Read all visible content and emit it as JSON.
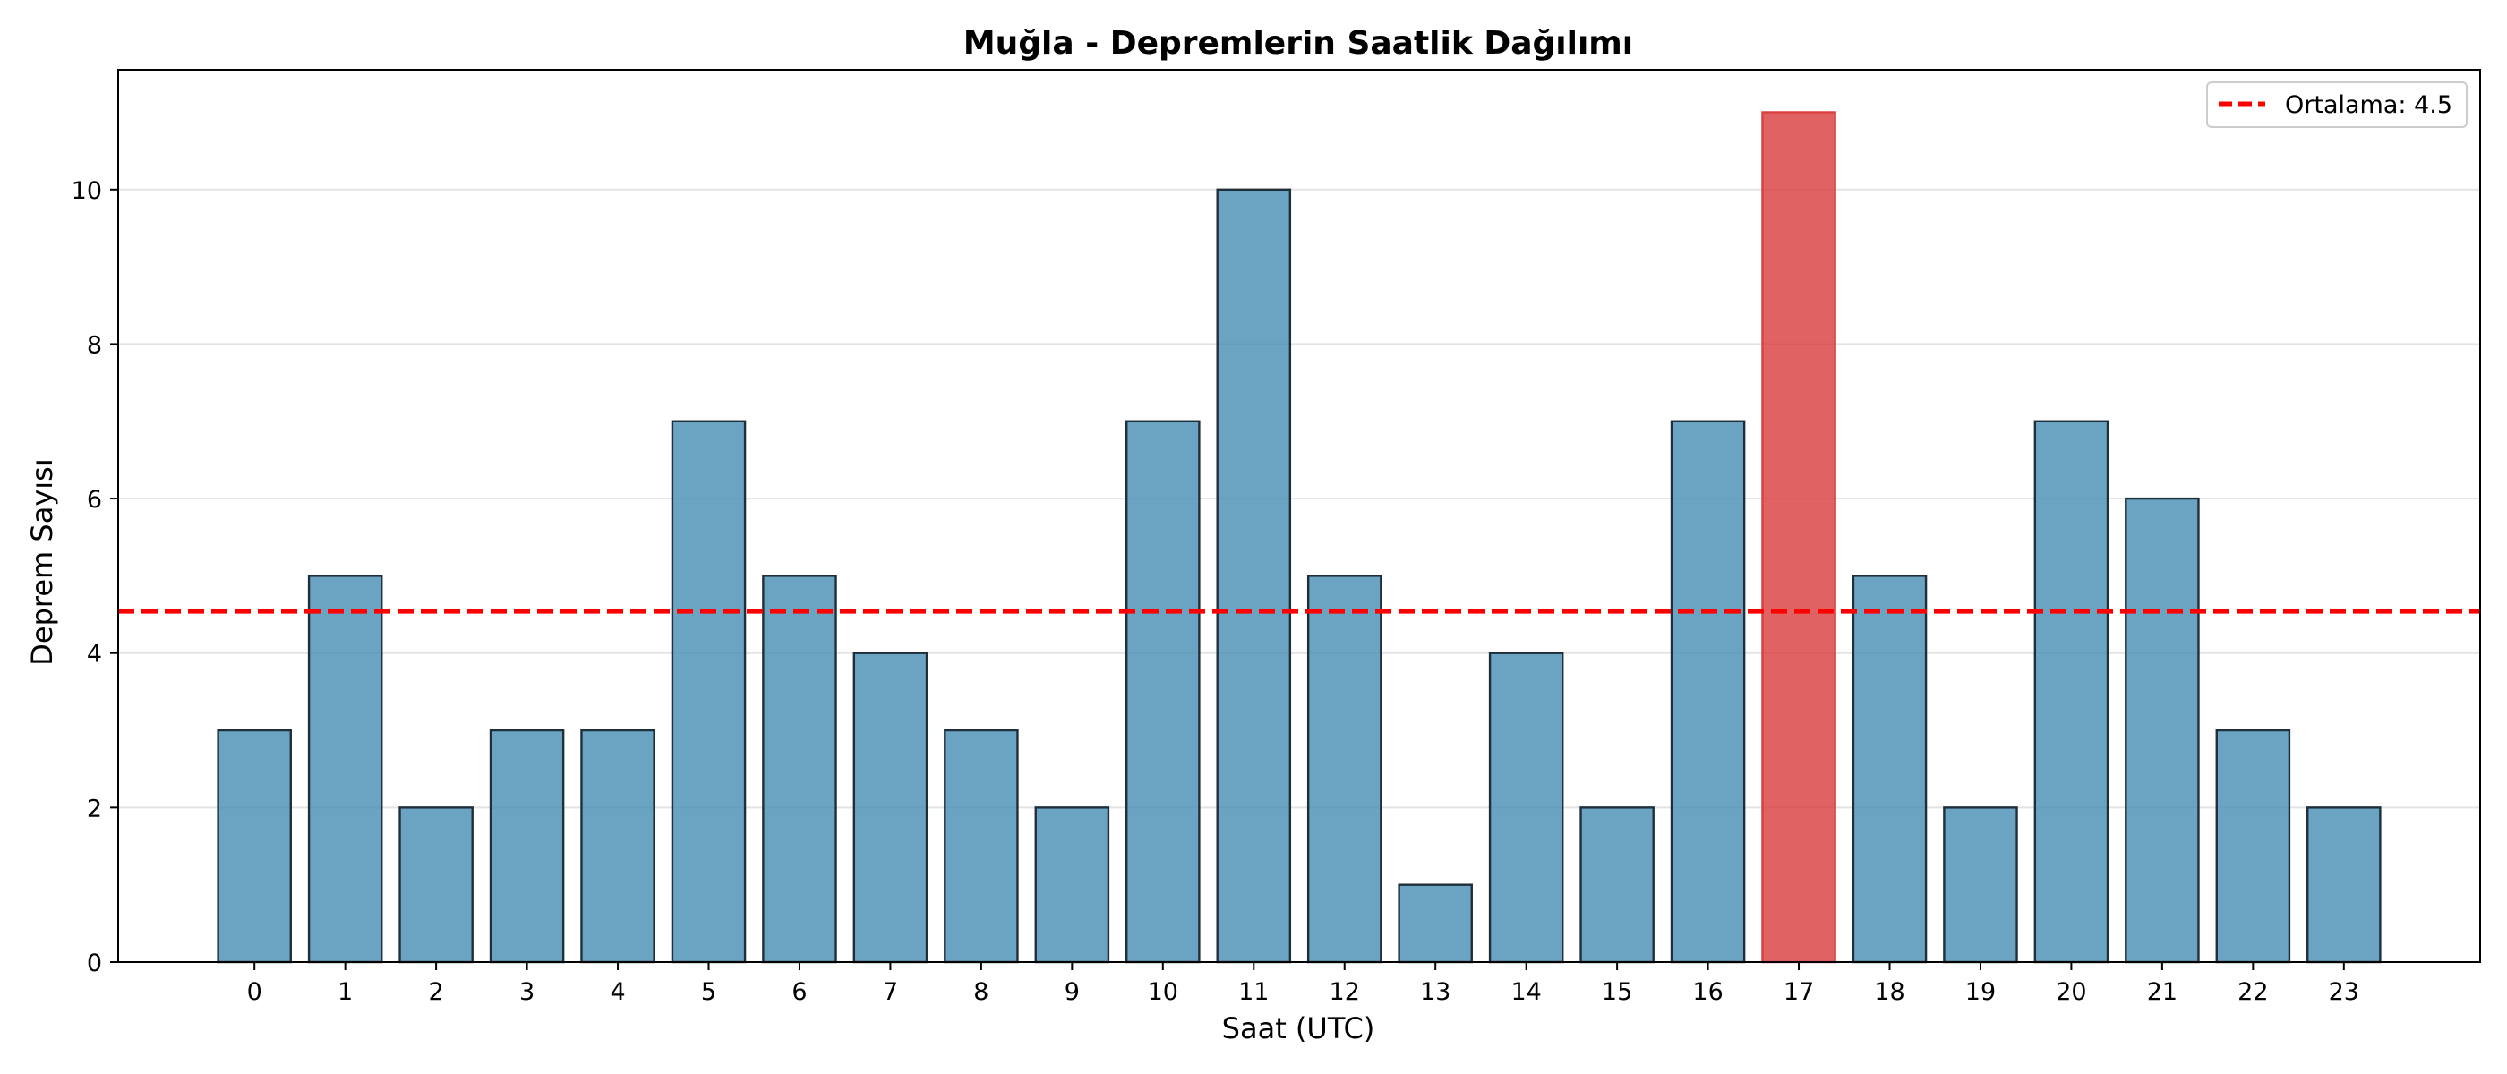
{
  "chart_data": {
    "type": "bar",
    "title": "Muğla - Depremlerin Saatlik Dağılımı",
    "xlabel": "Saat (UTC)",
    "ylabel": "Deprem Sayısı",
    "categories": [
      "0",
      "1",
      "2",
      "3",
      "4",
      "5",
      "6",
      "7",
      "8",
      "9",
      "10",
      "11",
      "12",
      "13",
      "14",
      "15",
      "16",
      "17",
      "18",
      "19",
      "20",
      "21",
      "22",
      "23"
    ],
    "values": [
      3,
      5,
      2,
      3,
      3,
      7,
      5,
      4,
      3,
      2,
      7,
      10,
      5,
      1,
      4,
      2,
      7,
      11,
      5,
      2,
      7,
      6,
      3,
      2
    ],
    "ylim": [
      0,
      11.55
    ],
    "yticks": [
      0,
      2,
      4,
      6,
      8,
      10
    ],
    "grid": "horizontal",
    "bar_color": "#4a90b5",
    "highlight_color": "#d94040",
    "highlight_index": 17,
    "mean": {
      "label": "Ortalama: 4.5",
      "value": 4.54,
      "color": "#ff0000",
      "style": "dashed"
    },
    "legend_position": "top-right"
  }
}
